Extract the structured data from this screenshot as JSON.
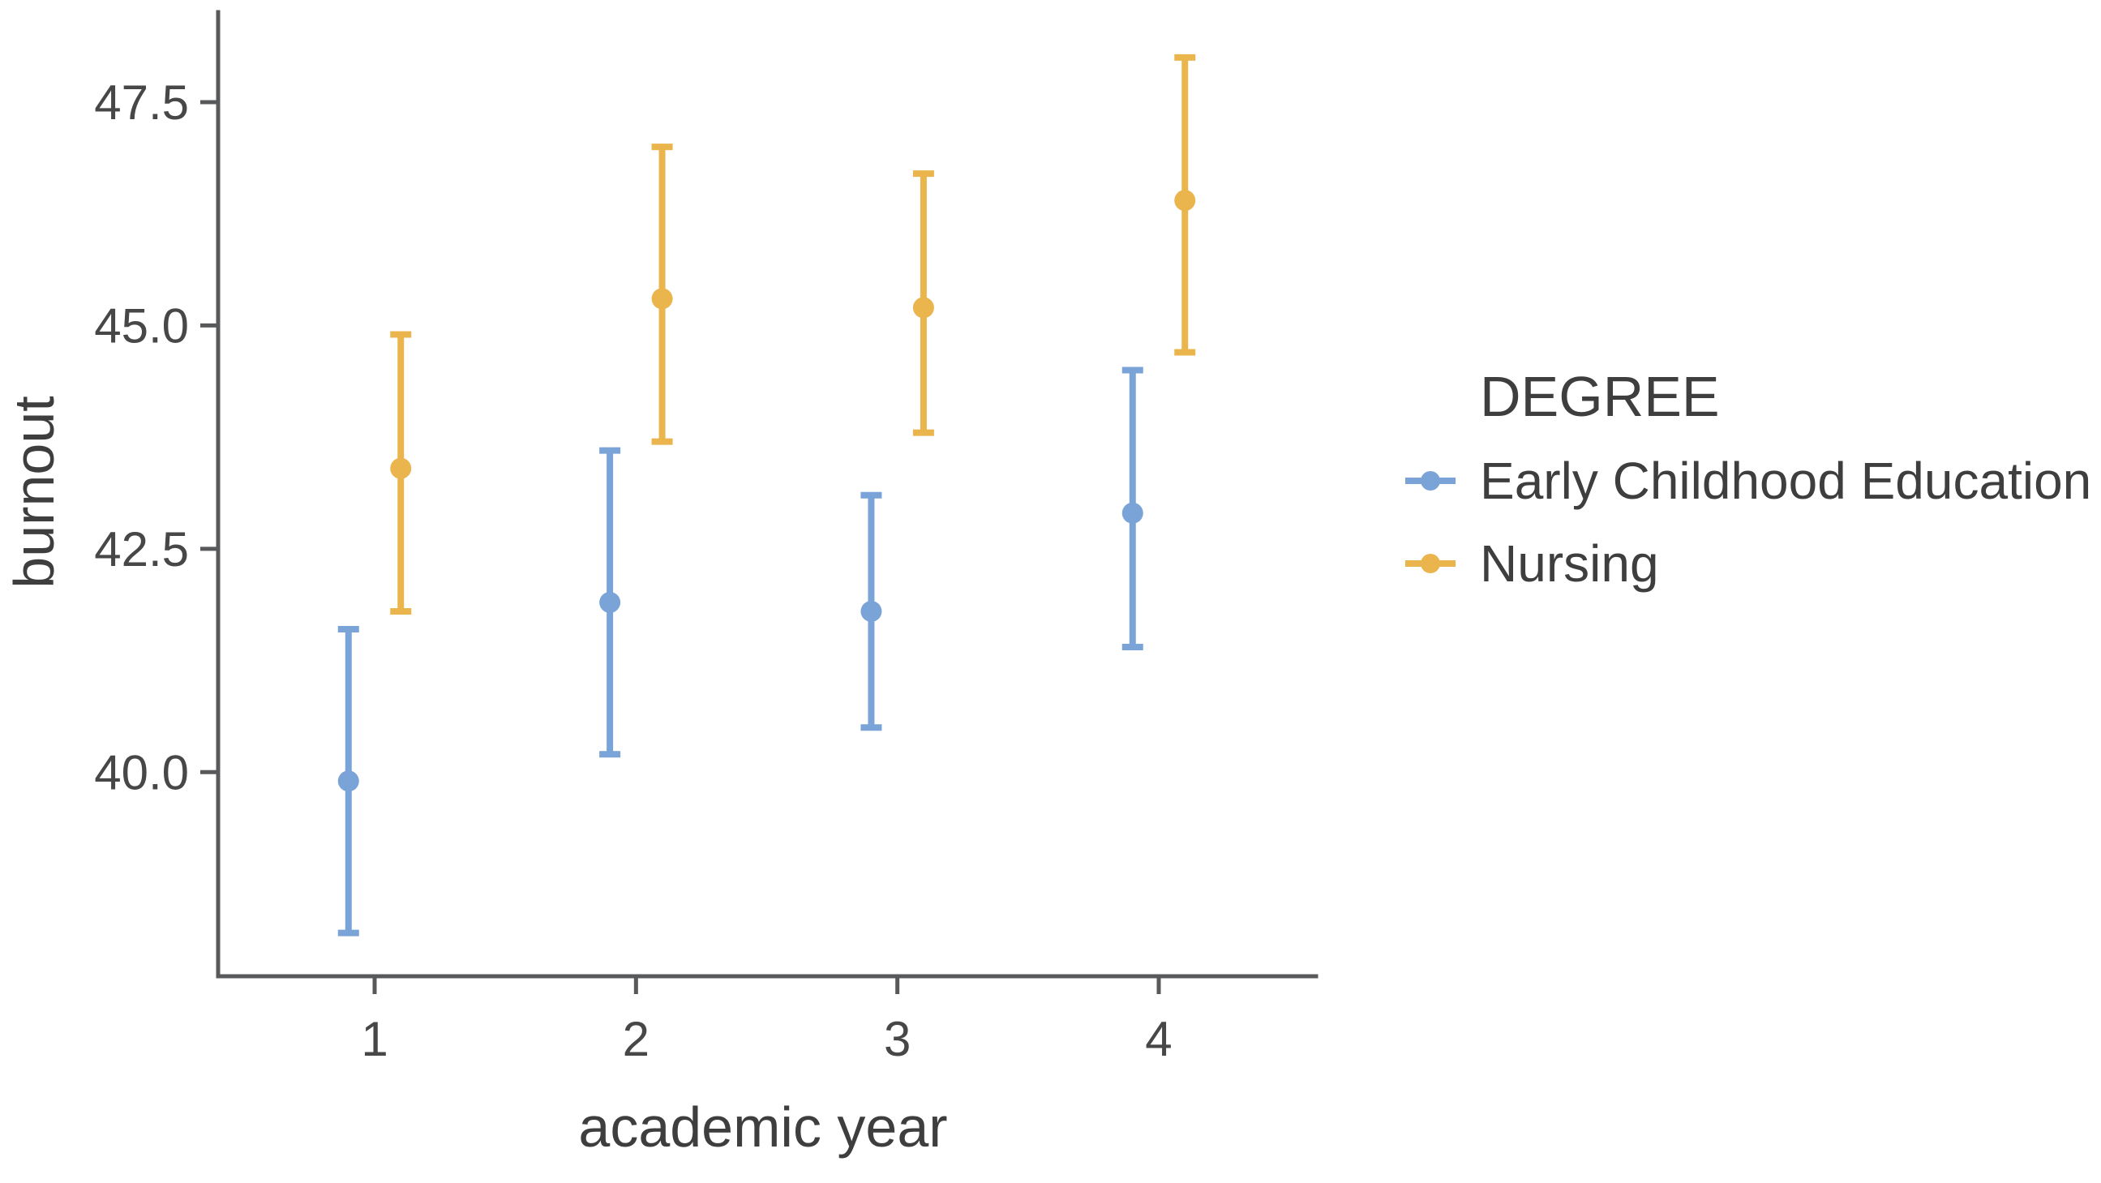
{
  "figure": {
    "background": "#ffffff",
    "axis_color": "#58595b",
    "text_color": "#3e3e3e",
    "tick_label_color": "#474747"
  },
  "chart_data": {
    "type": "scatter",
    "mark": "pointrange",
    "title": "",
    "xlabel": "academic year",
    "ylabel": "burnout",
    "xlim": [
      0.4,
      4.6
    ],
    "ylim": [
      37.7,
      48.5
    ],
    "grid": false,
    "ticks": {
      "x": [
        1,
        2,
        3,
        4
      ],
      "x_labels": [
        "1",
        "2",
        "3",
        "4"
      ],
      "y": [
        47.5,
        45.0,
        42.5,
        40.0
      ],
      "y_labels": [
        "47.5",
        "45.0",
        "42.5",
        "40.0"
      ]
    },
    "legend": {
      "title": "DEGREE",
      "position": "right"
    },
    "series": [
      {
        "name": "Early Childhood Education",
        "color": "#7aa4d8",
        "offset": -0.1,
        "points": [
          {
            "x": 1,
            "y": 39.9,
            "ymin": 38.2,
            "ymax": 41.6
          },
          {
            "x": 2,
            "y": 41.9,
            "ymin": 40.2,
            "ymax": 43.6
          },
          {
            "x": 3,
            "y": 41.8,
            "ymin": 40.5,
            "ymax": 43.1
          },
          {
            "x": 4,
            "y": 42.9,
            "ymin": 41.4,
            "ymax": 44.5
          }
        ]
      },
      {
        "name": "Nursing",
        "color": "#ebb54e",
        "offset": 0.1,
        "points": [
          {
            "x": 1,
            "y": 43.4,
            "ymin": 41.8,
            "ymax": 44.9
          },
          {
            "x": 2,
            "y": 45.3,
            "ymin": 43.7,
            "ymax": 47.0
          },
          {
            "x": 3,
            "y": 45.2,
            "ymin": 43.8,
            "ymax": 46.7
          },
          {
            "x": 4,
            "y": 46.4,
            "ymin": 44.7,
            "ymax": 48.0
          }
        ]
      }
    ]
  }
}
